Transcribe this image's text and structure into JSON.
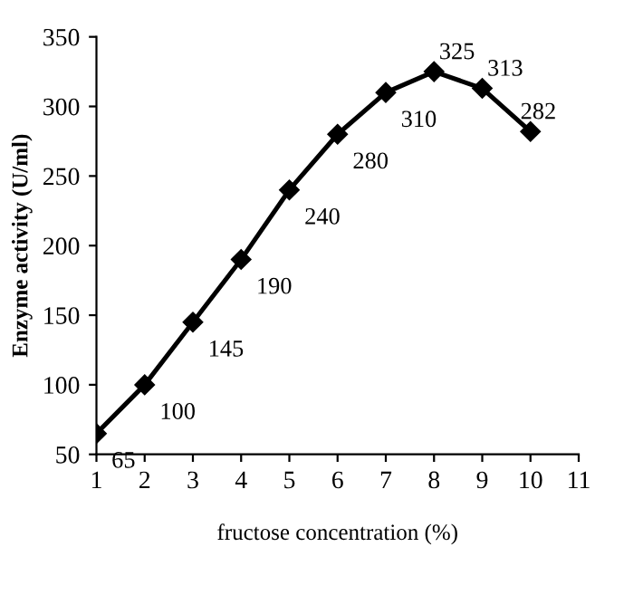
{
  "chart_data": {
    "type": "line",
    "xlabel": "fructose concentration (%)",
    "ylabel": "Enzyme activity (U/ml)",
    "x": [
      1,
      2,
      3,
      4,
      5,
      6,
      7,
      8,
      9,
      10
    ],
    "series": [
      {
        "color": "#000000",
        "values": [
          65,
          100,
          145,
          190,
          240,
          280,
          310,
          325,
          313,
          282
        ]
      }
    ],
    "xlim": [
      1,
      11
    ],
    "xticks": [
      1,
      2,
      3,
      4,
      5,
      6,
      7,
      8,
      9,
      10,
      11
    ],
    "ylim": [
      50,
      350
    ],
    "yticks": [
      50,
      100,
      150,
      200,
      250,
      300,
      350
    ],
    "grid": false,
    "legend": false,
    "marker": "diamond",
    "line_style": "solid",
    "data_labels": true
  }
}
